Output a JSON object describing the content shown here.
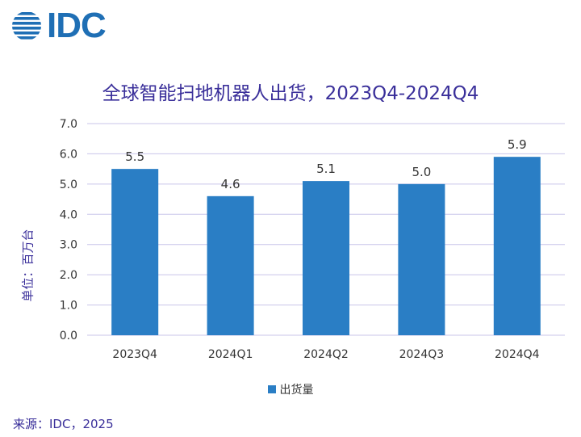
{
  "logo": {
    "text": "IDC"
  },
  "chart_data": {
    "type": "bar",
    "title": "全球智能扫地机器人出货，2023Q4-2024Q4",
    "ylabel": "单位：百万台",
    "xlabel": "",
    "categories": [
      "2023Q4",
      "2024Q1",
      "2024Q2",
      "2024Q3",
      "2024Q4"
    ],
    "series": [
      {
        "name": "出货量",
        "values": [
          5.5,
          4.6,
          5.1,
          5.0,
          5.9
        ],
        "labels": [
          "5.5",
          "4.6",
          "5.1",
          "5.0",
          "5.9"
        ]
      }
    ],
    "ylim": [
      0,
      7
    ],
    "yticks": [
      "0.0",
      "1.0",
      "2.0",
      "3.0",
      "4.0",
      "5.0",
      "6.0",
      "7.0"
    ],
    "grid": true,
    "legend_position": "bottom",
    "colors": {
      "bar": "#2a7ec5",
      "grid": "#c9c5ea",
      "title": "#3a2f9a"
    }
  },
  "source": "来源：IDC，2025"
}
